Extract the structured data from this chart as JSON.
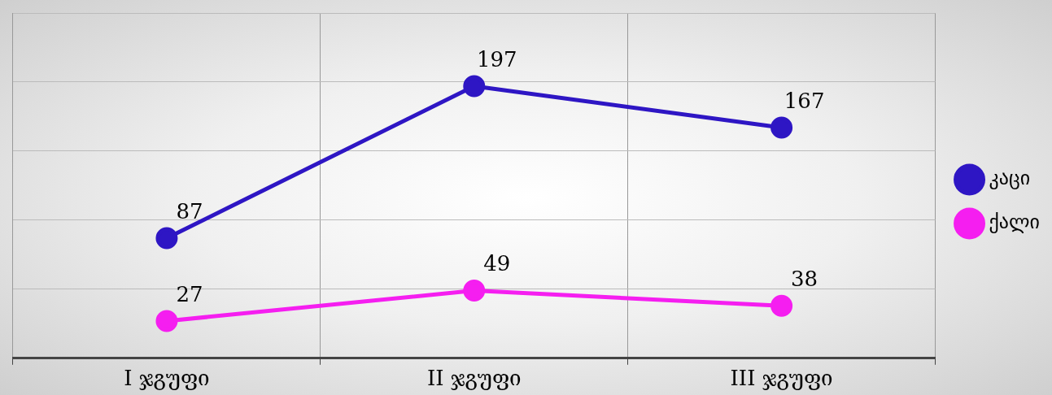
{
  "chart_data": {
    "type": "line",
    "categories": [
      "I ჯგუფი",
      "II ჯგუფი",
      "III ჯგუფი"
    ],
    "series": [
      {
        "name": "კაცი",
        "color": "#2e16c4",
        "values": [
          87,
          197,
          167
        ]
      },
      {
        "name": "ქალი",
        "color": "#f51ef0",
        "values": [
          27,
          49,
          38
        ]
      }
    ],
    "ylim": [
      0,
      250
    ],
    "yticks": [
      {
        "value": 0,
        "label": null
      },
      {
        "value": 50,
        "label": null
      },
      {
        "value": 100,
        "label": null
      },
      {
        "value": 150,
        "label": null
      },
      {
        "value": 200,
        "label": null
      },
      {
        "value": 250,
        "label": null
      }
    ],
    "tick_labels": "x",
    "grid": true,
    "legend": "right",
    "marker": "circle",
    "line_style": "solid",
    "data_labels": true
  }
}
